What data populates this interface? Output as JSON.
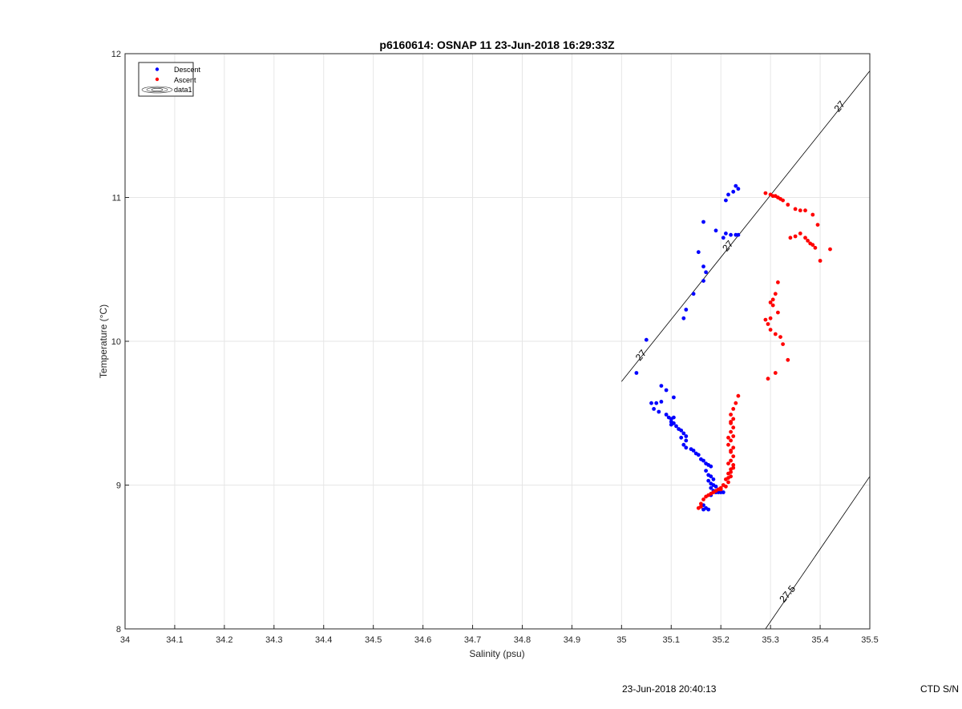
{
  "chart_data": {
    "type": "scatter",
    "title": "p6160614: OSNAP 11 23-Jun-2018 16:29:33Z",
    "xlabel": "Salinity (psu)",
    "ylabel": "Temperature (°C)",
    "xlim": [
      34,
      35.5
    ],
    "ylim": [
      8,
      12
    ],
    "xticks": [
      34,
      34.1,
      34.2,
      34.3,
      34.4,
      34.5,
      34.6,
      34.7,
      34.8,
      34.9,
      35,
      35.1,
      35.2,
      35.3,
      35.4,
      35.5
    ],
    "xtick_labels": [
      "34",
      "34.1",
      "34.2",
      "34.3",
      "34.4",
      "34.5",
      "34.6",
      "34.7",
      "34.8",
      "34.9",
      "35",
      "35.1",
      "35.2",
      "35.3",
      "35.4",
      "35.5"
    ],
    "yticks": [
      8,
      9,
      10,
      11,
      12
    ],
    "ytick_labels": [
      "8",
      "9",
      "10",
      "11",
      "12"
    ],
    "grid": true,
    "legend_position": "top-left",
    "legend": [
      "Descent",
      "Ascent",
      "data1"
    ],
    "series": [
      {
        "name": "Descent",
        "color": "#0000ff",
        "points": [
          [
            35.23,
            11.08
          ],
          [
            35.235,
            11.06
          ],
          [
            35.225,
            11.04
          ],
          [
            35.215,
            11.02
          ],
          [
            35.21,
            10.98
          ],
          [
            35.165,
            10.83
          ],
          [
            35.19,
            10.77
          ],
          [
            35.21,
            10.75
          ],
          [
            35.22,
            10.74
          ],
          [
            35.23,
            10.74
          ],
          [
            35.235,
            10.74
          ],
          [
            35.205,
            10.72
          ],
          [
            35.155,
            10.62
          ],
          [
            35.165,
            10.52
          ],
          [
            35.17,
            10.48
          ],
          [
            35.165,
            10.42
          ],
          [
            35.145,
            10.33
          ],
          [
            35.13,
            10.22
          ],
          [
            35.125,
            10.16
          ],
          [
            35.05,
            10.01
          ],
          [
            35.03,
            9.78
          ],
          [
            35.08,
            9.69
          ],
          [
            35.09,
            9.66
          ],
          [
            35.105,
            9.61
          ],
          [
            35.06,
            9.57
          ],
          [
            35.07,
            9.57
          ],
          [
            35.08,
            9.58
          ],
          [
            35.065,
            9.53
          ],
          [
            35.075,
            9.51
          ],
          [
            35.09,
            9.49
          ],
          [
            35.095,
            9.47
          ],
          [
            35.1,
            9.46
          ],
          [
            35.105,
            9.47
          ],
          [
            35.1,
            9.44
          ],
          [
            35.1,
            9.42
          ],
          [
            35.105,
            9.43
          ],
          [
            35.11,
            9.41
          ],
          [
            35.115,
            9.39
          ],
          [
            35.12,
            9.38
          ],
          [
            35.125,
            9.36
          ],
          [
            35.13,
            9.34
          ],
          [
            35.12,
            9.33
          ],
          [
            35.13,
            9.31
          ],
          [
            35.125,
            9.28
          ],
          [
            35.13,
            9.26
          ],
          [
            35.14,
            9.25
          ],
          [
            35.145,
            9.24
          ],
          [
            35.15,
            9.22
          ],
          [
            35.155,
            9.21
          ],
          [
            35.16,
            9.18
          ],
          [
            35.165,
            9.17
          ],
          [
            35.17,
            9.15
          ],
          [
            35.175,
            9.14
          ],
          [
            35.18,
            9.13
          ],
          [
            35.17,
            9.1
          ],
          [
            35.175,
            9.07
          ],
          [
            35.18,
            9.06
          ],
          [
            35.185,
            9.04
          ],
          [
            35.175,
            9.03
          ],
          [
            35.18,
            9.01
          ],
          [
            35.185,
            9.0
          ],
          [
            35.19,
            8.99
          ],
          [
            35.18,
            8.98
          ],
          [
            35.185,
            8.96
          ],
          [
            35.195,
            8.95
          ],
          [
            35.2,
            8.95
          ],
          [
            35.205,
            8.95
          ],
          [
            35.19,
            8.95
          ],
          [
            35.18,
            8.93
          ],
          [
            35.165,
            8.86
          ],
          [
            35.17,
            8.84
          ],
          [
            35.175,
            8.83
          ],
          [
            35.165,
            8.83
          ]
        ]
      },
      {
        "name": "Ascent",
        "color": "#ff0000",
        "points": [
          [
            35.29,
            11.03
          ],
          [
            35.3,
            11.02
          ],
          [
            35.305,
            11.01
          ],
          [
            35.31,
            11.01
          ],
          [
            35.315,
            11.0
          ],
          [
            35.32,
            10.99
          ],
          [
            35.325,
            10.98
          ],
          [
            35.335,
            10.95
          ],
          [
            35.35,
            10.92
          ],
          [
            35.36,
            10.91
          ],
          [
            35.37,
            10.91
          ],
          [
            35.385,
            10.88
          ],
          [
            35.395,
            10.81
          ],
          [
            35.36,
            10.75
          ],
          [
            35.35,
            10.73
          ],
          [
            35.34,
            10.72
          ],
          [
            35.37,
            10.72
          ],
          [
            35.375,
            10.7
          ],
          [
            35.38,
            10.68
          ],
          [
            35.385,
            10.67
          ],
          [
            35.39,
            10.65
          ],
          [
            35.42,
            10.64
          ],
          [
            35.4,
            10.56
          ],
          [
            35.315,
            10.41
          ],
          [
            35.31,
            10.33
          ],
          [
            35.305,
            10.29
          ],
          [
            35.3,
            10.27
          ],
          [
            35.305,
            10.25
          ],
          [
            35.315,
            10.2
          ],
          [
            35.29,
            10.15
          ],
          [
            35.3,
            10.16
          ],
          [
            35.295,
            10.12
          ],
          [
            35.3,
            10.08
          ],
          [
            35.31,
            10.05
          ],
          [
            35.32,
            10.03
          ],
          [
            35.325,
            9.98
          ],
          [
            35.335,
            9.87
          ],
          [
            35.31,
            9.78
          ],
          [
            35.295,
            9.74
          ],
          [
            35.235,
            9.62
          ],
          [
            35.23,
            9.57
          ],
          [
            35.225,
            9.53
          ],
          [
            35.22,
            9.49
          ],
          [
            35.225,
            9.46
          ],
          [
            35.22,
            9.43
          ],
          [
            35.225,
            9.4
          ],
          [
            35.22,
            9.37
          ],
          [
            35.225,
            9.34
          ],
          [
            35.22,
            9.31
          ],
          [
            35.215,
            9.28
          ],
          [
            35.225,
            9.26
          ],
          [
            35.22,
            9.23
          ],
          [
            35.225,
            9.2
          ],
          [
            35.22,
            9.17
          ],
          [
            35.225,
            9.14
          ],
          [
            35.22,
            9.11
          ],
          [
            35.215,
            9.08
          ],
          [
            35.22,
            9.06
          ],
          [
            35.21,
            9.04
          ],
          [
            35.215,
            9.02
          ],
          [
            35.205,
            9.0
          ],
          [
            35.2,
            8.98
          ],
          [
            35.195,
            8.97
          ],
          [
            35.19,
            8.96
          ],
          [
            35.185,
            8.95
          ],
          [
            35.18,
            8.94
          ],
          [
            35.175,
            8.93
          ],
          [
            35.17,
            8.92
          ],
          [
            35.165,
            8.9
          ],
          [
            35.16,
            8.87
          ],
          [
            35.155,
            8.84
          ],
          [
            35.16,
            8.85
          ],
          [
            35.2,
            8.97
          ],
          [
            35.21,
            8.99
          ],
          [
            35.215,
            9.05
          ],
          [
            35.22,
            9.09
          ],
          [
            35.225,
            9.12
          ],
          [
            35.215,
            9.15
          ],
          [
            35.22,
            9.24
          ],
          [
            35.215,
            9.33
          ],
          [
            35.22,
            9.44
          ]
        ]
      }
    ],
    "contours": [
      {
        "label": "27",
        "points": [
          [
            35,
            9.72
          ],
          [
            35.5,
            11.88
          ]
        ]
      },
      {
        "label": "27.5",
        "points": [
          [
            35.29,
            8.0
          ],
          [
            35.5,
            9.06
          ]
        ]
      }
    ],
    "contour_labels": [
      {
        "text": "27",
        "at": [
          35.04,
          9.9
        ]
      },
      {
        "text": "27",
        "at": [
          35.215,
          10.66
        ]
      },
      {
        "text": "27",
        "at": [
          35.44,
          11.63
        ]
      },
      {
        "text": "27.5",
        "at": [
          35.335,
          8.24
        ]
      }
    ]
  },
  "footer": {
    "date": "23-Jun-2018 20:40:13",
    "ctd": "CTD S/N"
  }
}
